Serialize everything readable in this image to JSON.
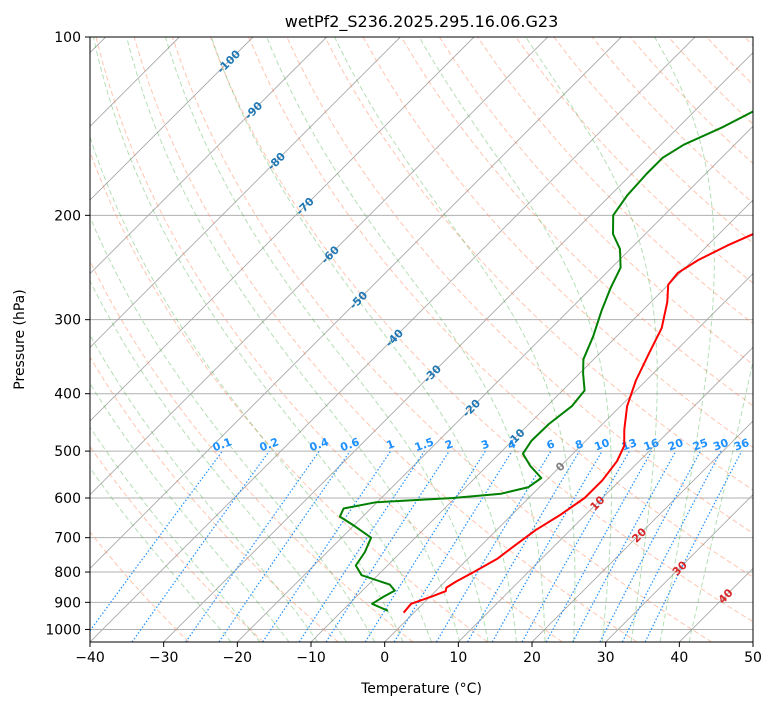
{
  "chart_data": {
    "type": "line",
    "title": "wetPf2_S236.2025.295.16.06.G23",
    "xlabel": "Temperature (°C)",
    "ylabel": "Pressure (hPa)",
    "xlim": [
      -40,
      50
    ],
    "ylim": [
      1050,
      100
    ],
    "y_scale": "log",
    "grid": true,
    "x_ticks": [
      -40,
      -30,
      -20,
      -10,
      0,
      10,
      20,
      30,
      40,
      50
    ],
    "x_tick_labels": [
      "−40",
      "−30",
      "−20",
      "−10",
      "0",
      "10",
      "20",
      "30",
      "40",
      "50"
    ],
    "y_ticks": [
      100,
      200,
      300,
      400,
      500,
      600,
      700,
      800,
      900,
      1000
    ],
    "y_tick_labels": [
      "100",
      "200",
      "300",
      "400",
      "500",
      "600",
      "700",
      "800",
      "900",
      "1000"
    ],
    "isotherm_labels": [
      {
        "value": -100,
        "text": "-100",
        "p": 110
      },
      {
        "value": -90,
        "text": "-90",
        "p": 133
      },
      {
        "value": -80,
        "text": "-80",
        "p": 162
      },
      {
        "value": -70,
        "text": "-70",
        "p": 193
      },
      {
        "value": -60,
        "text": "-60",
        "p": 233
      },
      {
        "value": -50,
        "text": "-50",
        "p": 278
      },
      {
        "value": -40,
        "text": "-40",
        "p": 322
      },
      {
        "value": -30,
        "text": "-30",
        "p": 370
      },
      {
        "value": -20,
        "text": "-20",
        "p": 423
      },
      {
        "value": -10,
        "text": "-10",
        "p": 474
      },
      {
        "value": 0,
        "text": "0",
        "p": 531
      },
      {
        "value": 10,
        "text": "10",
        "p": 612
      },
      {
        "value": 20,
        "text": "20",
        "p": 693
      },
      {
        "value": 30,
        "text": "30",
        "p": 788
      },
      {
        "value": 40,
        "text": "40",
        "p": 878
      }
    ],
    "mixing_ratio_labels": [
      {
        "value": 0.1,
        "text": "0.1"
      },
      {
        "value": 0.2,
        "text": "0.2"
      },
      {
        "value": 0.4,
        "text": "0.4"
      },
      {
        "value": 0.6,
        "text": "0.6"
      },
      {
        "value": 1,
        "text": "1"
      },
      {
        "value": 1.5,
        "text": "1.5"
      },
      {
        "value": 2,
        "text": "2"
      },
      {
        "value": 3,
        "text": "3"
      },
      {
        "value": 4,
        "text": "4"
      },
      {
        "value": 6,
        "text": "6"
      },
      {
        "value": 8,
        "text": "8"
      },
      {
        "value": 10,
        "text": "10"
      },
      {
        "value": 13,
        "text": "13"
      },
      {
        "value": 16,
        "text": "16"
      },
      {
        "value": 20,
        "text": "20"
      },
      {
        "value": 25,
        "text": "25"
      },
      {
        "value": 30,
        "text": "30"
      },
      {
        "value": 36,
        "text": "36"
      }
    ],
    "colors": {
      "temperature": "#ff0000",
      "dewpoint": "#008000",
      "isotherm_label": "#1f77b4",
      "isotherm_label_warm": "#d62728",
      "isotherm_label_zero": "#7f7f7f",
      "mixing_ratio": "#1e90ff",
      "dry_adiabat": "#ff7f50",
      "moist_adiabat": "#2ca02c",
      "isotherm_line": "#a9a9a9"
    },
    "series": [
      {
        "id": "temperature",
        "points": [
          {
            "p": 937,
            "t": -1.4
          },
          {
            "p": 905,
            "t": -1.6
          },
          {
            "p": 880,
            "t": 0.2
          },
          {
            "p": 862,
            "t": 1.4
          },
          {
            "p": 850,
            "t": 1.0
          },
          {
            "p": 830,
            "t": 1.5
          },
          {
            "p": 800,
            "t": 2.6
          },
          {
            "p": 760,
            "t": 4.0
          },
          {
            "p": 720,
            "t": 4.6
          },
          {
            "p": 680,
            "t": 5.3
          },
          {
            "p": 640,
            "t": 6.6
          },
          {
            "p": 600,
            "t": 7.6
          },
          {
            "p": 560,
            "t": 7.6
          },
          {
            "p": 520,
            "t": 7.0
          },
          {
            "p": 490,
            "t": 5.9
          },
          {
            "p": 460,
            "t": 3.7
          },
          {
            "p": 420,
            "t": 0.9
          },
          {
            "p": 380,
            "t": -1.4
          },
          {
            "p": 340,
            "t": -3.4
          },
          {
            "p": 310,
            "t": -5.0
          },
          {
            "p": 280,
            "t": -7.8
          },
          {
            "p": 262,
            "t": -10.0
          },
          {
            "p": 250,
            "t": -10.3
          },
          {
            "p": 238,
            "t": -9.3
          },
          {
            "p": 225,
            "t": -7.3
          },
          {
            "p": 210,
            "t": -4.3
          },
          {
            "p": 198,
            "t": -1.3
          },
          {
            "p": 185,
            "t": 2.5
          },
          {
            "p": 172,
            "t": 6.4
          },
          {
            "p": 160,
            "t": 8.9
          },
          {
            "p": 148,
            "t": 11.4
          },
          {
            "p": 137,
            "t": 14.7
          },
          {
            "p": 125,
            "t": 18.9
          },
          {
            "p": 118,
            "t": 20.6
          },
          {
            "p": 112,
            "t": 20.5
          },
          {
            "p": 106,
            "t": 21.1
          },
          {
            "p": 100,
            "t": 22.5
          }
        ]
      },
      {
        "id": "dewpoint",
        "points": [
          {
            "p": 930,
            "t": -3.8
          },
          {
            "p": 905,
            "t": -6.9
          },
          {
            "p": 880,
            "t": -6.3
          },
          {
            "p": 860,
            "t": -5.6
          },
          {
            "p": 840,
            "t": -7.1
          },
          {
            "p": 810,
            "t": -12.2
          },
          {
            "p": 780,
            "t": -14.3
          },
          {
            "p": 740,
            "t": -14.9
          },
          {
            "p": 700,
            "t": -16.0
          },
          {
            "p": 670,
            "t": -19.7
          },
          {
            "p": 645,
            "t": -23.1
          },
          {
            "p": 625,
            "t": -23.7
          },
          {
            "p": 610,
            "t": -20.2
          },
          {
            "p": 600,
            "t": -10.3
          },
          {
            "p": 590,
            "t": -4.3
          },
          {
            "p": 575,
            "t": -1.5
          },
          {
            "p": 555,
            "t": -1.0
          },
          {
            "p": 530,
            "t": -4.1
          },
          {
            "p": 505,
            "t": -6.8
          },
          {
            "p": 480,
            "t": -7.4
          },
          {
            "p": 450,
            "t": -7.3
          },
          {
            "p": 420,
            "t": -6.6
          },
          {
            "p": 395,
            "t": -7.0
          },
          {
            "p": 370,
            "t": -9.5
          },
          {
            "p": 350,
            "t": -11.4
          },
          {
            "p": 320,
            "t": -13.2
          },
          {
            "p": 290,
            "t": -15.5
          },
          {
            "p": 265,
            "t": -17.4
          },
          {
            "p": 245,
            "t": -18.8
          },
          {
            "p": 228,
            "t": -21.4
          },
          {
            "p": 215,
            "t": -24.4
          },
          {
            "p": 200,
            "t": -26.9
          },
          {
            "p": 185,
            "t": -27.7
          },
          {
            "p": 170,
            "t": -28.0
          },
          {
            "p": 160,
            "t": -28.0
          },
          {
            "p": 152,
            "t": -26.9
          },
          {
            "p": 142,
            "t": -24.0
          },
          {
            "p": 132,
            "t": -21.6
          },
          {
            "p": 122,
            "t": -20.4
          },
          {
            "p": 116,
            "t": -19.5
          },
          {
            "p": 110,
            "t": -17.9
          },
          {
            "p": 105,
            "t": -15.3
          },
          {
            "p": 100,
            "t": -12.9
          }
        ]
      }
    ]
  }
}
